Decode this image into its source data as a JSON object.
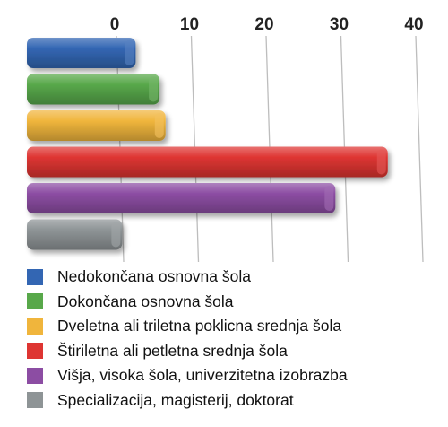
{
  "chart_data": {
    "type": "bar",
    "orientation": "horizontal",
    "categories": [
      "Nedokončana osnovna šola",
      "Dokončana osnovna šola",
      "Dveletna ali triletna poklicna srednja šola",
      "Štiriletna ali petletna srednja šola",
      "Višja, visoka šola, univerzitetna izobrazba",
      "Specializacija, magisterij, doktorat"
    ],
    "values": [
      2.8,
      6.0,
      6.8,
      36.5,
      29.5,
      1.0
    ],
    "colors": [
      "#3366b3",
      "#58a84a",
      "#f0b53c",
      "#de3532",
      "#8c4da3",
      "#8e9496"
    ],
    "xlim": [
      0,
      40
    ],
    "xticks": [
      0,
      10,
      20,
      30,
      40
    ],
    "axis_position": "top",
    "grid": true,
    "legend_position": "bottom",
    "title": "",
    "xlabel": "",
    "ylabel": ""
  }
}
